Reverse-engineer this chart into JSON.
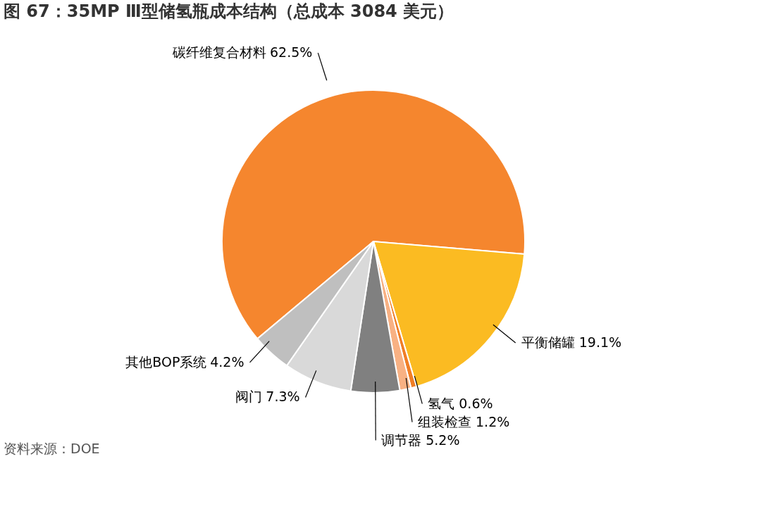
{
  "chart_data": {
    "type": "pie",
    "title": "图 67：35MP Ⅲ型储氢瓶成本结构（总成本 3084 美元）",
    "categories": [
      "碳纤维复合材料",
      "平衡储罐",
      "氢气",
      "组装检查",
      "调节器",
      "阀门",
      "其他BOP系统"
    ],
    "values": [
      62.5,
      19.1,
      0.6,
      1.2,
      5.2,
      7.3,
      4.2
    ],
    "colors": [
      "#f5862e",
      "#fbbb22",
      "#f07e26",
      "#f8b183",
      "#808080",
      "#d9d9d9",
      "#bfbfbf"
    ],
    "value_labels": [
      "62.5%",
      "19.1%",
      "0.6%",
      "1.2%",
      "5.2%",
      "7.3%",
      "4.2%"
    ],
    "legend": false,
    "annotations": [
      "资料来源：DOE"
    ]
  }
}
